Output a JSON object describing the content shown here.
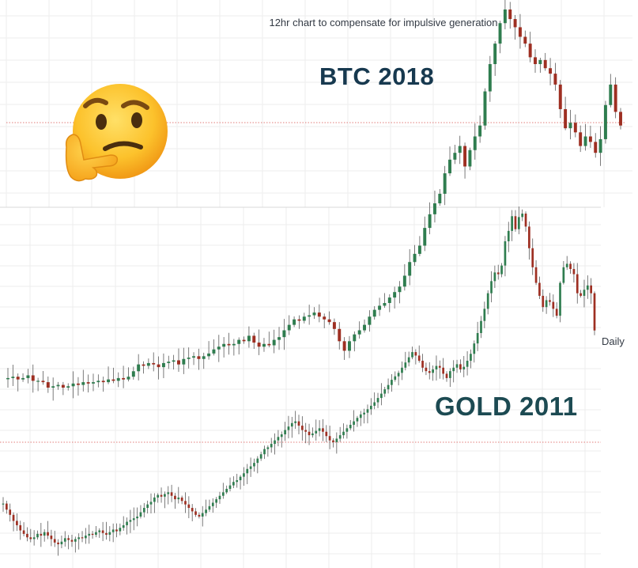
{
  "annotation": "12hr chart to compensate for impulsive generation",
  "emoji": "thinking-face",
  "chart_data": [
    {
      "type": "candlestick",
      "name": "BTC 2018",
      "interval": "12hr",
      "grid": true,
      "colors": {
        "up": "#2f7d4f",
        "down": "#9e2f22",
        "wick": "#5a5a5a"
      },
      "ylim": [
        0,
        100
      ],
      "close": [
        85,
        86,
        84,
        85,
        87,
        83,
        83,
        82,
        78,
        79,
        80,
        78,
        79,
        81,
        80,
        82,
        81,
        82,
        83,
        82,
        84,
        83,
        85,
        84,
        86,
        90,
        95,
        94,
        96,
        95,
        93,
        96,
        97,
        98,
        95,
        99,
        100,
        101,
        99,
        101,
        103,
        106,
        108,
        110,
        109,
        110,
        113,
        112,
        116,
        111,
        108,
        110,
        109,
        113,
        115,
        120,
        124,
        128,
        127,
        130,
        131,
        133,
        130,
        128,
        126,
        121,
        112,
        105,
        112,
        117,
        120,
        124,
        130,
        135,
        138,
        140,
        144,
        148,
        152,
        160,
        170,
        176,
        182,
        195,
        205,
        213,
        220,
        235,
        245,
        250,
        255,
        240,
        252,
        262,
        270,
        295,
        315,
        330,
        345,
        355,
        348,
        342,
        335,
        330,
        320,
        315,
        318,
        312,
        308,
        300,
        282,
        268,
        272,
        265,
        255,
        262,
        258,
        250,
        260,
        285,
        300,
        280,
        270
      ]
    },
    {
      "type": "candlestick",
      "name": "GOLD 2011",
      "interval": "Daily",
      "grid": true,
      "colors": {
        "up": "#2f7d4f",
        "down": "#9e2f22",
        "wick": "#5a5a5a"
      },
      "ylim": [
        0,
        100
      ],
      "close": [
        105,
        98,
        92,
        85,
        80,
        74,
        70,
        66,
        64,
        66,
        70,
        68,
        72,
        68,
        64,
        60,
        58,
        61,
        65,
        63,
        61,
        64,
        66,
        65,
        68,
        70,
        69,
        72,
        74,
        71,
        69,
        72,
        75,
        73,
        77,
        80,
        84,
        86,
        88,
        90,
        95,
        100,
        104,
        107,
        112,
        115,
        113,
        116,
        118,
        114,
        110,
        112,
        108,
        104,
        100,
        96,
        92,
        90,
        94,
        98,
        102,
        106,
        110,
        114,
        118,
        122,
        126,
        130,
        132,
        136,
        140,
        145,
        148,
        152,
        157,
        162,
        168,
        170,
        174,
        178,
        182,
        185,
        190,
        194,
        198,
        200,
        195,
        190,
        188,
        184,
        186,
        189,
        192,
        188,
        183,
        178,
        176,
        180,
        184,
        188,
        192,
        196,
        200,
        204,
        208,
        210,
        214,
        218,
        222,
        227,
        232,
        237,
        242,
        248,
        252,
        256,
        262,
        268,
        274,
        280,
        276,
        270,
        262,
        258,
        256,
        260,
        264,
        262,
        255,
        250,
        258,
        262,
        266,
        260,
        263,
        270,
        278,
        290,
        302,
        316,
        330,
        348,
        362,
        372,
        370,
        380,
        408,
        420,
        437,
        422,
        436,
        440,
        425,
        400,
        378,
        360,
        345,
        332,
        340,
        338,
        330,
        322,
        360,
        378,
        382,
        376,
        370,
        348,
        345,
        352,
        357,
        348,
        305
      ]
    }
  ],
  "labels": {
    "btc": "BTC 2018",
    "gold": "GOLD 2011",
    "daily": "Daily"
  }
}
